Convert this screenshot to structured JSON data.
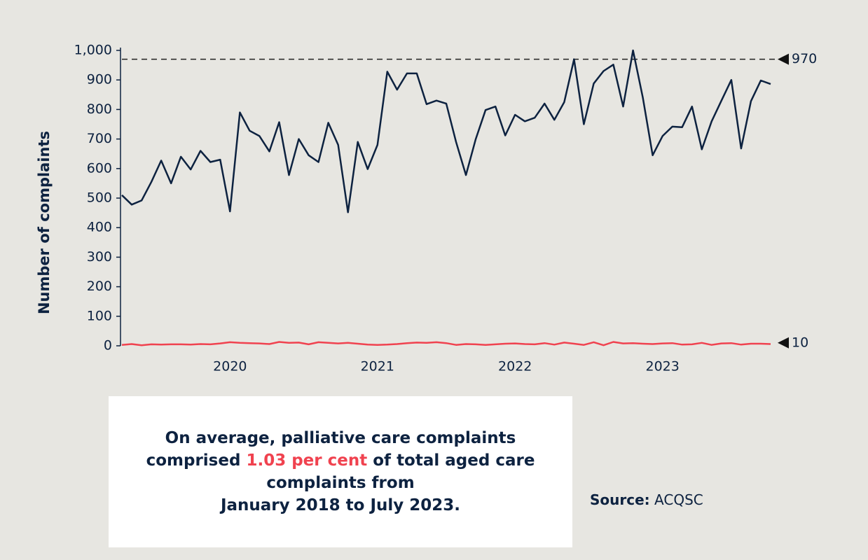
{
  "chart_data": {
    "type": "line",
    "y_label": "Number of  complaints",
    "categories": [
      null,
      null,
      null,
      null,
      null,
      null,
      null,
      null,
      null,
      null,
      null,
      "2020",
      null,
      null,
      null,
      null,
      null,
      null,
      null,
      null,
      null,
      null,
      null,
      null,
      null,
      null,
      "2021",
      null,
      null,
      null,
      null,
      null,
      null,
      null,
      null,
      null,
      null,
      null,
      null,
      null,
      "2022",
      null,
      null,
      null,
      null,
      null,
      null,
      null,
      null,
      null,
      null,
      null,
      null,
      null,
      null,
      "2023",
      null,
      null,
      null,
      null,
      null,
      null,
      null,
      null,
      null,
      null,
      null
    ],
    "series": [
      {
        "color": "#0d2240",
        "values": [
          510,
          478,
          492,
          555,
          627,
          550,
          640,
          597,
          660,
          622,
          630,
          455,
          790,
          728,
          710,
          658,
          757,
          578,
          700,
          645,
          622,
          755,
          680,
          452,
          690,
          598,
          680,
          928,
          867,
          922,
          922,
          818,
          830,
          820,
          690,
          578,
          700,
          798,
          810,
          712,
          782,
          760,
          772,
          820,
          765,
          825,
          970,
          750,
          888,
          930,
          952,
          810,
          1000,
          840,
          645,
          710,
          742,
          740,
          810,
          665,
          760,
          830,
          900,
          668,
          828,
          898,
          886
        ]
      },
      {
        "color": "#f0424f",
        "values": [
          3,
          6,
          2,
          5,
          4,
          5,
          5,
          4,
          6,
          5,
          8,
          12,
          10,
          9,
          8,
          6,
          13,
          10,
          11,
          5,
          12,
          10,
          8,
          10,
          7,
          4,
          3,
          4,
          6,
          9,
          11,
          10,
          12,
          9,
          3,
          6,
          5,
          3,
          5,
          7,
          8,
          6,
          5,
          9,
          4,
          11,
          7,
          3,
          12,
          2,
          13,
          8,
          9,
          7,
          6,
          8,
          9,
          4,
          5,
          10,
          3,
          8,
          9,
          4,
          7,
          7,
          6
        ]
      }
    ],
    "reference_lines": [
      {
        "value": 970,
        "dashed": true
      },
      {
        "value": 10,
        "dashed": false
      }
    ],
    "ylim": [
      0,
      1000
    ],
    "yticks": [
      0,
      100,
      200,
      300,
      400,
      500,
      600,
      700,
      800,
      900,
      {
        "value": 1000,
        "label": "1,000"
      }
    ],
    "grid": false
  },
  "note": {
    "line1": "On average, palliative care complaints",
    "pre": "comprised",
    "highlight": "1.03 per cent",
    "post": "of total aged care",
    "line3": "complaints from",
    "line4": "January 2018 to July 2023."
  },
  "source": {
    "label": "Source:",
    "text": "ACQSC"
  }
}
